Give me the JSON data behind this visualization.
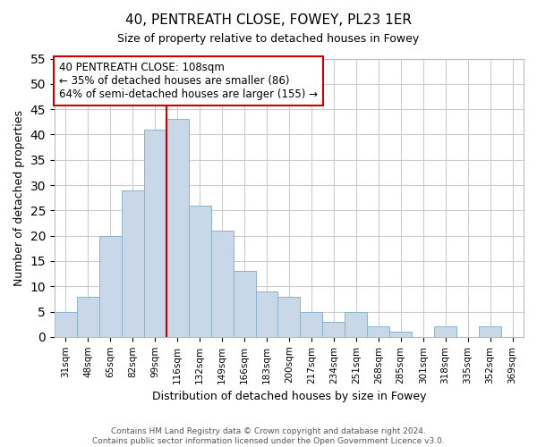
{
  "title": "40, PENTREATH CLOSE, FOWEY, PL23 1ER",
  "subtitle": "Size of property relative to detached houses in Fowey",
  "xlabel": "Distribution of detached houses by size in Fowey",
  "ylabel": "Number of detached properties",
  "bar_labels": [
    "31sqm",
    "48sqm",
    "65sqm",
    "82sqm",
    "99sqm",
    "116sqm",
    "132sqm",
    "149sqm",
    "166sqm",
    "183sqm",
    "200sqm",
    "217sqm",
    "234sqm",
    "251sqm",
    "268sqm",
    "285sqm",
    "301sqm",
    "318sqm",
    "335sqm",
    "352sqm",
    "369sqm"
  ],
  "bar_values": [
    5,
    8,
    20,
    29,
    41,
    43,
    26,
    21,
    13,
    9,
    8,
    5,
    3,
    5,
    2,
    1,
    0,
    2,
    0,
    2,
    0
  ],
  "bar_color": "#c8d8e8",
  "bar_edge_color": "#8ab4cc",
  "vline_color": "#cc0000",
  "annotation_title": "40 PENTREATH CLOSE: 108sqm",
  "annotation_line1": "← 35% of detached houses are smaller (86)",
  "annotation_line2": "64% of semi-detached houses are larger (155) →",
  "annotation_box_color": "#ffffff",
  "annotation_box_edge": "#cc0000",
  "ylim": [
    0,
    55
  ],
  "yticks": [
    0,
    5,
    10,
    15,
    20,
    25,
    30,
    35,
    40,
    45,
    50,
    55
  ],
  "footer_line1": "Contains HM Land Registry data © Crown copyright and database right 2024.",
  "footer_line2": "Contains public sector information licensed under the Open Government Licence v3.0.",
  "background_color": "#ffffff",
  "grid_color": "#cccccc"
}
